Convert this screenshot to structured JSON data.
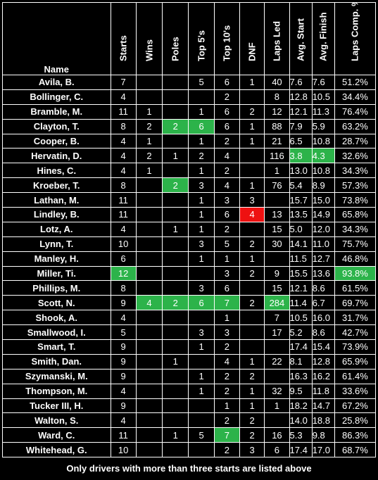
{
  "headers": {
    "name": "Name",
    "starts": "Starts",
    "wins": "Wins",
    "poles": "Poles",
    "top5": "Top 5's",
    "top10": "Top 10's",
    "dnf": "DNF",
    "laps_led": "Laps Led",
    "avg_start": "Avg. Start",
    "avg_finish": "Avg. Finish",
    "laps_comp": "Laps Comp. %"
  },
  "colors": {
    "highlight_green": "#2cb34a",
    "highlight_red": "#ee1111",
    "background": "#000000",
    "text": "#ffffff"
  },
  "rows": [
    {
      "name": "Avila, B.",
      "starts": "7",
      "wins": "",
      "poles": "",
      "top5": "5",
      "top10": "6",
      "dnf": "1",
      "laps_led": "40",
      "avg_start": "7.6",
      "avg_finish": "7.6",
      "laps_comp": "51.2%",
      "highlights": []
    },
    {
      "name": "Bollinger, C.",
      "starts": "4",
      "wins": "",
      "poles": "",
      "top5": "",
      "top10": "2",
      "dnf": "",
      "laps_led": "8",
      "avg_start": "12.8",
      "avg_finish": "10.5",
      "laps_comp": "34.4%",
      "highlights": []
    },
    {
      "name": "Bramble, M.",
      "starts": "11",
      "wins": "1",
      "poles": "",
      "top5": "1",
      "top10": "6",
      "dnf": "2",
      "laps_led": "12",
      "avg_start": "12.1",
      "avg_finish": "11.3",
      "laps_comp": "76.4%",
      "highlights": []
    },
    {
      "name": "Clayton, T.",
      "starts": "8",
      "wins": "2",
      "poles": "2",
      "top5": "6",
      "top10": "6",
      "dnf": "1",
      "laps_led": "88",
      "avg_start": "7.9",
      "avg_finish": "5.9",
      "laps_comp": "63.2%",
      "highlights": [
        "poles",
        "top5"
      ]
    },
    {
      "name": "Cooper, B.",
      "starts": "4",
      "wins": "1",
      "poles": "",
      "top5": "1",
      "top10": "2",
      "dnf": "1",
      "laps_led": "21",
      "avg_start": "6.5",
      "avg_finish": "10.8",
      "laps_comp": "28.7%",
      "highlights": []
    },
    {
      "name": "Hervatin, D.",
      "starts": "4",
      "wins": "2",
      "poles": "1",
      "top5": "2",
      "top10": "4",
      "dnf": "",
      "laps_led": "116",
      "avg_start": "3.8",
      "avg_finish": "4.3",
      "laps_comp": "32.6%",
      "highlights": [
        "avg_start",
        "avg_finish"
      ]
    },
    {
      "name": "Hines, C.",
      "starts": "4",
      "wins": "1",
      "poles": "",
      "top5": "1",
      "top10": "2",
      "dnf": "",
      "laps_led": "1",
      "avg_start": "13.0",
      "avg_finish": "10.8",
      "laps_comp": "34.3%",
      "highlights": []
    },
    {
      "name": "Kroeber, T.",
      "starts": "8",
      "wins": "",
      "poles": "2",
      "top5": "3",
      "top10": "4",
      "dnf": "1",
      "laps_led": "76",
      "avg_start": "5.4",
      "avg_finish": "8.9",
      "laps_comp": "57.3%",
      "highlights": [
        "poles"
      ]
    },
    {
      "name": "Lathan, M.",
      "starts": "11",
      "wins": "",
      "poles": "",
      "top5": "1",
      "top10": "3",
      "dnf": "3",
      "laps_led": "",
      "avg_start": "15.7",
      "avg_finish": "15.0",
      "laps_comp": "73.8%",
      "highlights": []
    },
    {
      "name": "Lindley, B.",
      "starts": "11",
      "wins": "",
      "poles": "",
      "top5": "1",
      "top10": "6",
      "dnf": "4",
      "laps_led": "13",
      "avg_start": "13.5",
      "avg_finish": "14.9",
      "laps_comp": "65.8%",
      "highlights": [],
      "red": [
        "dnf"
      ]
    },
    {
      "name": "Lotz, A.",
      "starts": "4",
      "wins": "",
      "poles": "1",
      "top5": "1",
      "top10": "2",
      "dnf": "",
      "laps_led": "15",
      "avg_start": "5.0",
      "avg_finish": "12.0",
      "laps_comp": "34.3%",
      "highlights": []
    },
    {
      "name": "Lynn, T.",
      "starts": "10",
      "wins": "",
      "poles": "",
      "top5": "3",
      "top10": "5",
      "dnf": "2",
      "laps_led": "30",
      "avg_start": "14.1",
      "avg_finish": "11.0",
      "laps_comp": "75.7%",
      "highlights": []
    },
    {
      "name": "Manley, H.",
      "starts": "6",
      "wins": "",
      "poles": "",
      "top5": "1",
      "top10": "1",
      "dnf": "1",
      "laps_led": "",
      "avg_start": "11.5",
      "avg_finish": "12.7",
      "laps_comp": "46.8%",
      "highlights": []
    },
    {
      "name": "Miller, Ti.",
      "starts": "12",
      "wins": "",
      "poles": "",
      "top5": "",
      "top10": "3",
      "dnf": "2",
      "laps_led": "9",
      "avg_start": "15.5",
      "avg_finish": "13.6",
      "laps_comp": "93.8%",
      "highlights": [
        "starts",
        "laps_comp"
      ]
    },
    {
      "name": "Phillips, M.",
      "starts": "8",
      "wins": "",
      "poles": "",
      "top5": "3",
      "top10": "6",
      "dnf": "",
      "laps_led": "15",
      "avg_start": "12.1",
      "avg_finish": "8.6",
      "laps_comp": "61.5%",
      "highlights": []
    },
    {
      "name": "Scott, N.",
      "starts": "9",
      "wins": "4",
      "poles": "2",
      "top5": "6",
      "top10": "7",
      "dnf": "2",
      "laps_led": "284",
      "avg_start": "11.4",
      "avg_finish": "6.7",
      "laps_comp": "69.7%",
      "highlights": [
        "wins",
        "poles",
        "top5",
        "top10",
        "laps_led"
      ]
    },
    {
      "name": "Shook, A.",
      "starts": "4",
      "wins": "",
      "poles": "",
      "top5": "",
      "top10": "1",
      "dnf": "",
      "laps_led": "7",
      "avg_start": "10.5",
      "avg_finish": "16.0",
      "laps_comp": "31.7%",
      "highlights": []
    },
    {
      "name": "Smallwood, I.",
      "starts": "5",
      "wins": "",
      "poles": "",
      "top5": "3",
      "top10": "3",
      "dnf": "",
      "laps_led": "17",
      "avg_start": "5.2",
      "avg_finish": "8.6",
      "laps_comp": "42.7%",
      "highlights": []
    },
    {
      "name": "Smart, T.",
      "starts": "9",
      "wins": "",
      "poles": "",
      "top5": "1",
      "top10": "2",
      "dnf": "",
      "laps_led": "",
      "avg_start": "17.4",
      "avg_finish": "15.4",
      "laps_comp": "73.9%",
      "highlights": []
    },
    {
      "name": "Smith, Dan.",
      "starts": "9",
      "wins": "",
      "poles": "1",
      "top5": "",
      "top10": "4",
      "dnf": "1",
      "laps_led": "22",
      "avg_start": "8.1",
      "avg_finish": "12.8",
      "laps_comp": "65.9%",
      "highlights": []
    },
    {
      "name": "Szymanski, M.",
      "starts": "9",
      "wins": "",
      "poles": "",
      "top5": "1",
      "top10": "2",
      "dnf": "2",
      "laps_led": "",
      "avg_start": "16.3",
      "avg_finish": "16.2",
      "laps_comp": "61.4%",
      "highlights": []
    },
    {
      "name": "Thompson, M.",
      "starts": "4",
      "wins": "",
      "poles": "",
      "top5": "1",
      "top10": "2",
      "dnf": "1",
      "laps_led": "32",
      "avg_start": "9.5",
      "avg_finish": "11.8",
      "laps_comp": "33.6%",
      "highlights": []
    },
    {
      "name": "Tucker III, H.",
      "starts": "9",
      "wins": "",
      "poles": "",
      "top5": "",
      "top10": "1",
      "dnf": "1",
      "laps_led": "1",
      "avg_start": "18.2",
      "avg_finish": "14.7",
      "laps_comp": "67.2%",
      "highlights": []
    },
    {
      "name": "Walton, S.",
      "starts": "4",
      "wins": "",
      "poles": "",
      "top5": "",
      "top10": "2",
      "dnf": "2",
      "laps_led": "",
      "avg_start": "14.0",
      "avg_finish": "18.8",
      "laps_comp": "25.8%",
      "highlights": []
    },
    {
      "name": "Ward, C.",
      "starts": "11",
      "wins": "",
      "poles": "1",
      "top5": "5",
      "top10": "7",
      "dnf": "2",
      "laps_led": "16",
      "avg_start": "5.3",
      "avg_finish": "9.8",
      "laps_comp": "86.3%",
      "highlights": [
        "top10"
      ]
    },
    {
      "name": "Whitehead, G.",
      "starts": "10",
      "wins": "",
      "poles": "",
      "top5": "",
      "top10": "2",
      "dnf": "3",
      "laps_led": "6",
      "avg_start": "17.4",
      "avg_finish": "17.0",
      "laps_comp": "68.7%",
      "highlights": []
    }
  ],
  "footnote": "Only drivers with more than three starts are listed above"
}
